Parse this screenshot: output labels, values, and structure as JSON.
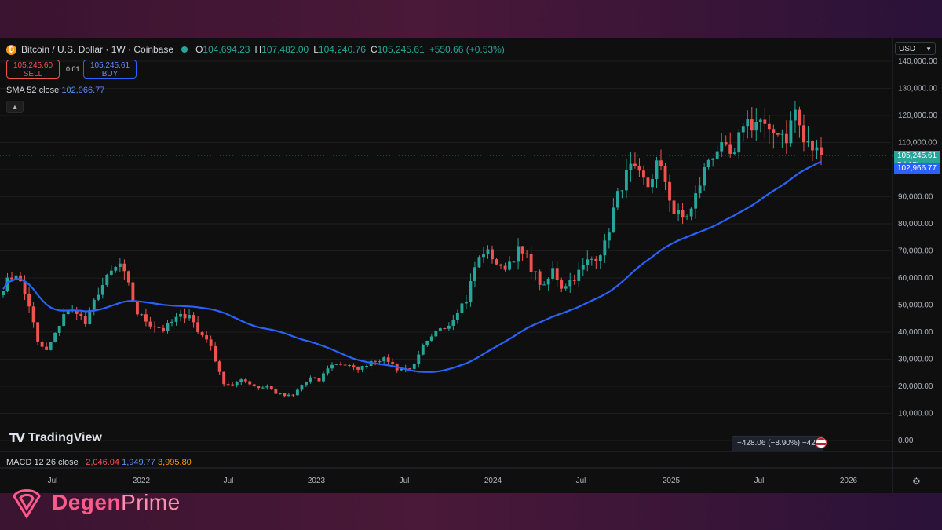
{
  "header": {
    "symbol": "Bitcoin / U.S. Dollar · 1W · Coinbase",
    "badge": "₿",
    "open_label": "O",
    "open": "104,694.23",
    "high_label": "H",
    "high": "107,482.00",
    "low_label": "L",
    "low": "104,240.76",
    "close_label": "C",
    "close": "105,245.61",
    "change": "+550.66 (+0.53%)"
  },
  "trade": {
    "sell_price": "105,245.60",
    "sell_label": "SELL",
    "spread": "0.01",
    "buy_price": "105,245.61",
    "buy_label": "BUY"
  },
  "indicator": {
    "sma_label": "SMA 52 close",
    "sma_value": "102,966.77"
  },
  "currency": "USD",
  "price_tags": {
    "last": "105,245.61",
    "countdown": "5d 15h",
    "sma": "102,966.77"
  },
  "logo_text": "TradingView",
  "measure_label": "−428.06 (−8.90%) −42,",
  "macd": {
    "label": "MACD 12 26 close",
    "v1": "−2,046.04",
    "v2": "1,949.77",
    "v3": "3,995.80"
  },
  "brand": {
    "part1": "Degen",
    "part2": "Prime"
  },
  "colors": {
    "up": "#26a69a",
    "down": "#ef5350",
    "sma": "#2962ff",
    "background": "#0f0f0f",
    "brand": "#ff5a8c"
  },
  "chart_data": {
    "type": "candlestick",
    "interval": "1W",
    "y_axis": {
      "min": 0,
      "max": 140000,
      "ticks": [
        "140,000.00",
        "130,000.00",
        "120,000.00",
        "110,000.00",
        "100,000.00",
        "90,000.00",
        "80,000.00",
        "70,000.00",
        "60,000.00",
        "50,000.00",
        "40,000.00",
        "30,000.00",
        "20,000.00",
        "10,000.00",
        "0.00"
      ]
    },
    "x_axis": {
      "labels": [
        "Jul",
        "2022",
        "Jul",
        "2023",
        "Jul",
        "2024",
        "Jul",
        "2025",
        "Jul",
        "2026"
      ]
    },
    "price_path": [
      [
        0,
        57000
      ],
      [
        3,
        62000
      ],
      [
        6,
        50000
      ],
      [
        8,
        36000
      ],
      [
        10,
        33000
      ],
      [
        12,
        39000
      ],
      [
        14,
        47000
      ],
      [
        17,
        48000
      ],
      [
        19,
        43000
      ],
      [
        22,
        55000
      ],
      [
        25,
        62000
      ],
      [
        27,
        65000
      ],
      [
        29,
        57000
      ],
      [
        31,
        47000
      ],
      [
        34,
        43000
      ],
      [
        37,
        41000
      ],
      [
        40,
        45000
      ],
      [
        43,
        47000
      ],
      [
        45,
        40000
      ],
      [
        47,
        38000
      ],
      [
        49,
        30000
      ],
      [
        51,
        21000
      ],
      [
        53,
        20000
      ],
      [
        55,
        23000
      ],
      [
        57,
        21000
      ],
      [
        59,
        19500
      ],
      [
        61,
        20000
      ],
      [
        63,
        17500
      ],
      [
        65,
        16500
      ],
      [
        67,
        16600
      ],
      [
        69,
        20500
      ],
      [
        71,
        23000
      ],
      [
        73,
        22000
      ],
      [
        75,
        27000
      ],
      [
        77,
        28500
      ],
      [
        79,
        28000
      ],
      [
        81,
        26500
      ],
      [
        83,
        27000
      ],
      [
        85,
        29500
      ],
      [
        87,
        30000
      ],
      [
        89,
        29500
      ],
      [
        91,
        26500
      ],
      [
        93,
        26500
      ],
      [
        95,
        27500
      ],
      [
        97,
        34500
      ],
      [
        99,
        37500
      ],
      [
        101,
        42000
      ],
      [
        103,
        43000
      ],
      [
        105,
        48500
      ],
      [
        107,
        52000
      ],
      [
        109,
        64000
      ],
      [
        111,
        70000
      ],
      [
        113,
        68000
      ],
      [
        115,
        63000
      ],
      [
        117,
        66000
      ],
      [
        119,
        70000
      ],
      [
        121,
        67000
      ],
      [
        123,
        61000
      ],
      [
        125,
        56000
      ],
      [
        127,
        63000
      ],
      [
        129,
        57000
      ],
      [
        131,
        59000
      ],
      [
        133,
        62000
      ],
      [
        135,
        66000
      ],
      [
        137,
        68000
      ],
      [
        139,
        72000
      ],
      [
        141,
        85000
      ],
      [
        143,
        95000
      ],
      [
        145,
        100000
      ],
      [
        147,
        97000
      ],
      [
        149,
        94000
      ],
      [
        151,
        102000
      ],
      [
        153,
        96000
      ],
      [
        155,
        84000
      ],
      [
        157,
        82000
      ],
      [
        159,
        85000
      ],
      [
        161,
        95000
      ],
      [
        163,
        104000
      ],
      [
        165,
        108000
      ],
      [
        167,
        106000
      ],
      [
        169,
        104000
      ],
      [
        171,
        118000
      ],
      [
        173,
        117000
      ],
      [
        175,
        118000
      ],
      [
        177,
        112000
      ],
      [
        179,
        115000
      ],
      [
        181,
        112000
      ],
      [
        183,
        122000
      ],
      [
        185,
        110000
      ],
      [
        187,
        108000
      ],
      [
        189,
        105300
      ]
    ],
    "series": [
      {
        "type": "candlestick",
        "last_close": 105245.61
      },
      {
        "name": "SMA 52 close",
        "type": "line",
        "last_value": 102966.77
      }
    ],
    "grid": true,
    "legend": "top-left"
  }
}
